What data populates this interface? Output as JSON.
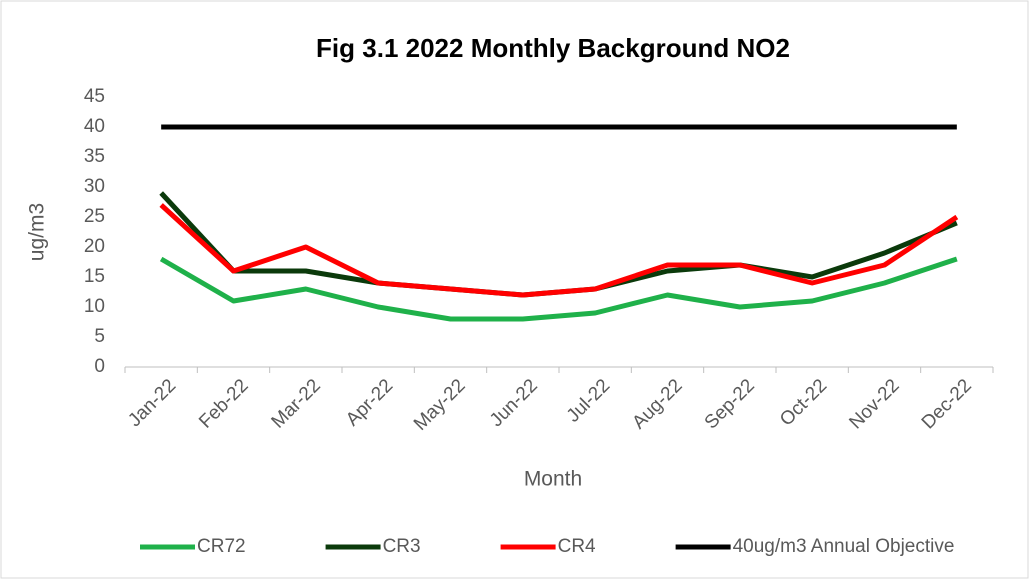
{
  "chart_data": {
    "type": "line",
    "title": "Fig 3.1 2022 Monthly Background NO2",
    "x_label": "Month",
    "y_label": "ug/m3",
    "categories": [
      "Jan-22",
      "Feb-22",
      "Mar-22",
      "Apr-22",
      "May-22",
      "Jun-22",
      "Jul-22",
      "Aug-22",
      "Sep-22",
      "Oct-22",
      "Nov-22",
      "Dec-22"
    ],
    "series": [
      {
        "name": "CR72",
        "color": "#1fb14a",
        "values": [
          18,
          11,
          13,
          10,
          8,
          8,
          9,
          12,
          10,
          11,
          14,
          18
        ]
      },
      {
        "name": "CR3",
        "color": "#0b3a0b",
        "values": [
          29,
          16,
          16,
          14,
          13,
          12,
          13,
          16,
          17,
          15,
          19,
          24
        ]
      },
      {
        "name": "CR4",
        "color": "#ff0000",
        "values": [
          27,
          16,
          20,
          14,
          13,
          12,
          13,
          17,
          17,
          14,
          17,
          25
        ]
      },
      {
        "name": "40ug/m3 Annual Objective",
        "color": "#000000",
        "values": [
          40,
          40,
          40,
          40,
          40,
          40,
          40,
          40,
          40,
          40,
          40,
          40
        ]
      }
    ],
    "ylim": [
      0,
      45
    ],
    "yticks": [
      0,
      5,
      10,
      15,
      20,
      25,
      30,
      35,
      40,
      45
    ],
    "grid": false,
    "legend": "bottom"
  }
}
